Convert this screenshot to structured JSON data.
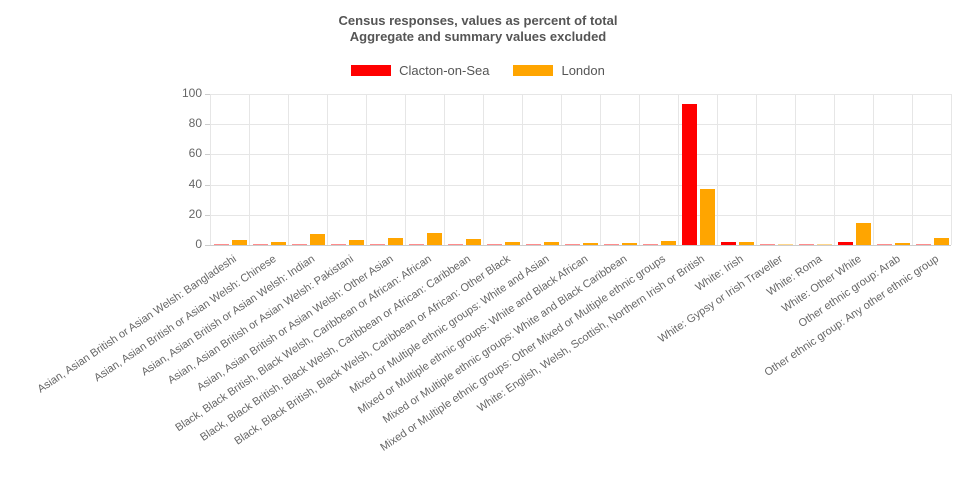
{
  "header": {
    "title": "Census responses, values as percent of total",
    "subtitle": "Aggregate and summary values excluded"
  },
  "chart_data": {
    "type": "bar",
    "title": "Census responses, values as percent of total",
    "subtitle": "Aggregate and summary values excluded",
    "categories": [
      "Asian, Asian British or Asian Welsh: Bangladeshi",
      "Asian, Asian British or Asian Welsh: Chinese",
      "Asian, Asian British or Asian Welsh: Indian",
      "Asian, Asian British or Asian Welsh: Pakistani",
      "Asian, Asian British or Asian Welsh: Other Asian",
      "Black, Black British, Black Welsh, Caribbean or African: African",
      "Black, Black British, Black Welsh, Caribbean or African: Caribbean",
      "Black, Black British, Black Welsh, Caribbean or African: Other Black",
      "Mixed or Multiple ethnic groups: White and Asian",
      "Mixed or Multiple ethnic groups: White and Black African",
      "Mixed or Multiple ethnic groups: White and Black Caribbean",
      "Mixed or Multiple ethnic groups: Other Mixed or Multiple ethnic groups",
      "White: English, Welsh, Scottish, Northern Irish or British",
      "White: Irish",
      "White: Gypsy or Irish Traveller",
      "White: Roma",
      "White: Other White",
      "Other ethnic group: Arab",
      "Other ethnic group: Any other ethnic group"
    ],
    "series": [
      {
        "name": "Clacton-on-Sea",
        "color": "#ff0000",
        "values": [
          0.4,
          0.4,
          0.5,
          0.3,
          0.4,
          0.3,
          0.3,
          0.3,
          0.5,
          0.3,
          0.9,
          0.4,
          93.4,
          1.8,
          0.8,
          0.1,
          1.9,
          0.1,
          0.4
        ]
      },
      {
        "name": "London",
        "color": "#ffa500",
        "values": [
          3.5,
          1.8,
          7.0,
          3.3,
          4.8,
          7.7,
          4.0,
          2.2,
          1.8,
          1.3,
          1.6,
          2.4,
          36.9,
          2.2,
          0.5,
          0.2,
          14.9,
          1.6,
          4.4
        ]
      }
    ],
    "xlabel": "",
    "ylabel": "",
    "ylim": [
      0,
      100
    ],
    "yticks": [
      0,
      20,
      40,
      60,
      80,
      100
    ],
    "grid": true,
    "legend_position": "top"
  },
  "colors": {
    "grid": "#e6e6e6",
    "axis_line": "#cccccc",
    "tick_text": "#666666",
    "title_text": "#555555",
    "background": "#ffffff"
  }
}
